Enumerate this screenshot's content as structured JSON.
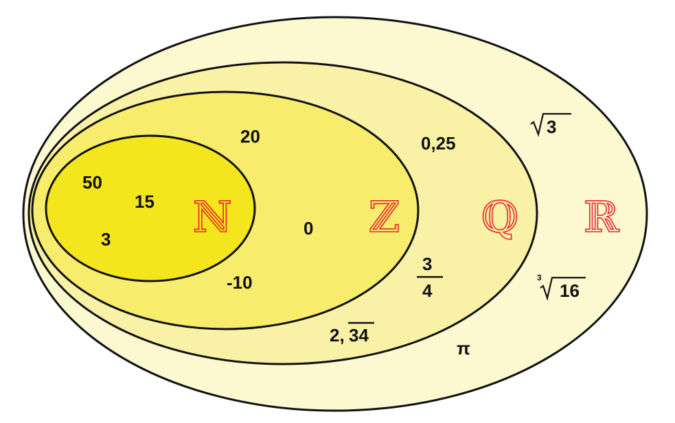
{
  "sets": {
    "naturals": {
      "symbol": "ℕ",
      "fill": "#f4e61c"
    },
    "integers": {
      "symbol": "ℤ",
      "fill": "#f7ec6b"
    },
    "rationals": {
      "symbol": "ℚ",
      "fill": "#f9f2a6"
    },
    "reals": {
      "symbol": "ℝ",
      "fill": "#fcf8d0"
    }
  },
  "colors": {
    "outline": "#111111",
    "set_symbol": "#e8232b"
  },
  "elements": {
    "naturals": [
      "50",
      "15",
      "3"
    ],
    "integers": [
      "20",
      "0",
      "-10"
    ],
    "rationals": {
      "decimal": "0,25",
      "fraction_numerator": "3",
      "fraction_denominator": "4",
      "periodic_integer_part": "2,",
      "periodic_repetend": "34"
    },
    "irrationals": {
      "sqrt_radicand": "3",
      "cbrt_index": "3",
      "cbrt_radicand": "16",
      "pi": "π"
    }
  }
}
